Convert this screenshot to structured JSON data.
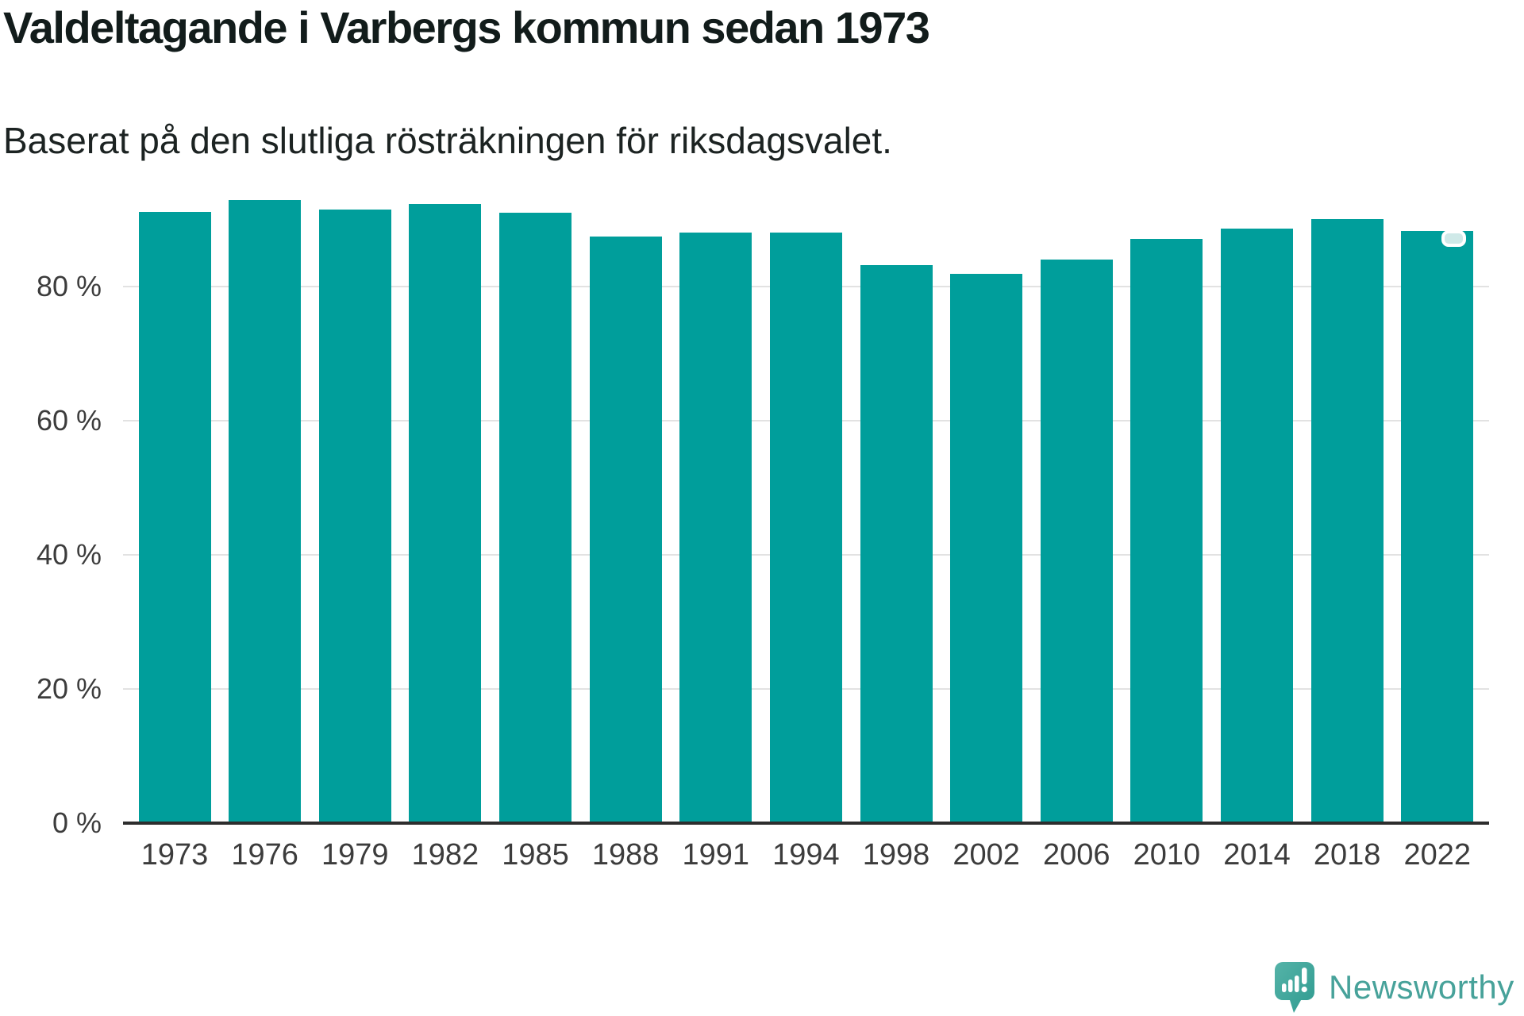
{
  "header": {
    "title": "Valdeltagande i Varbergs kommun sedan 1973",
    "subtitle": "Baserat på den slutliga rösträkningen för riksdagsvalet."
  },
  "chart_data": {
    "type": "bar",
    "title": "Valdeltagande i Varbergs kommun sedan 1973",
    "subtitle": "Baserat på den slutliga rösträkningen för riksdagsvalet.",
    "categories": [
      "1973",
      "1976",
      "1979",
      "1982",
      "1985",
      "1988",
      "1991",
      "1994",
      "1998",
      "2002",
      "2006",
      "2010",
      "2014",
      "2018",
      "2022"
    ],
    "values": [
      91.1,
      92.9,
      91.5,
      92.3,
      91.0,
      87.4,
      88.1,
      88.1,
      83.2,
      81.9,
      84.0,
      87.1,
      88.6,
      90.1,
      88.3
    ],
    "unit": "%",
    "xlabel": "",
    "ylabel": "",
    "yticks": [
      0,
      20,
      40,
      60,
      80
    ],
    "ytick_suffix": " %",
    "ylim": [
      0,
      93.5
    ],
    "grid": "horizontal",
    "legend": "none",
    "bar_color": "#009e9b",
    "highlight_marker": {
      "category": "2022",
      "fill": "#cfe9e8",
      "border": "#ffffff"
    }
  },
  "footer": {
    "brand": "Newsworthy",
    "brand_color": "#47a29a",
    "icon_color": "#3ea59b"
  }
}
